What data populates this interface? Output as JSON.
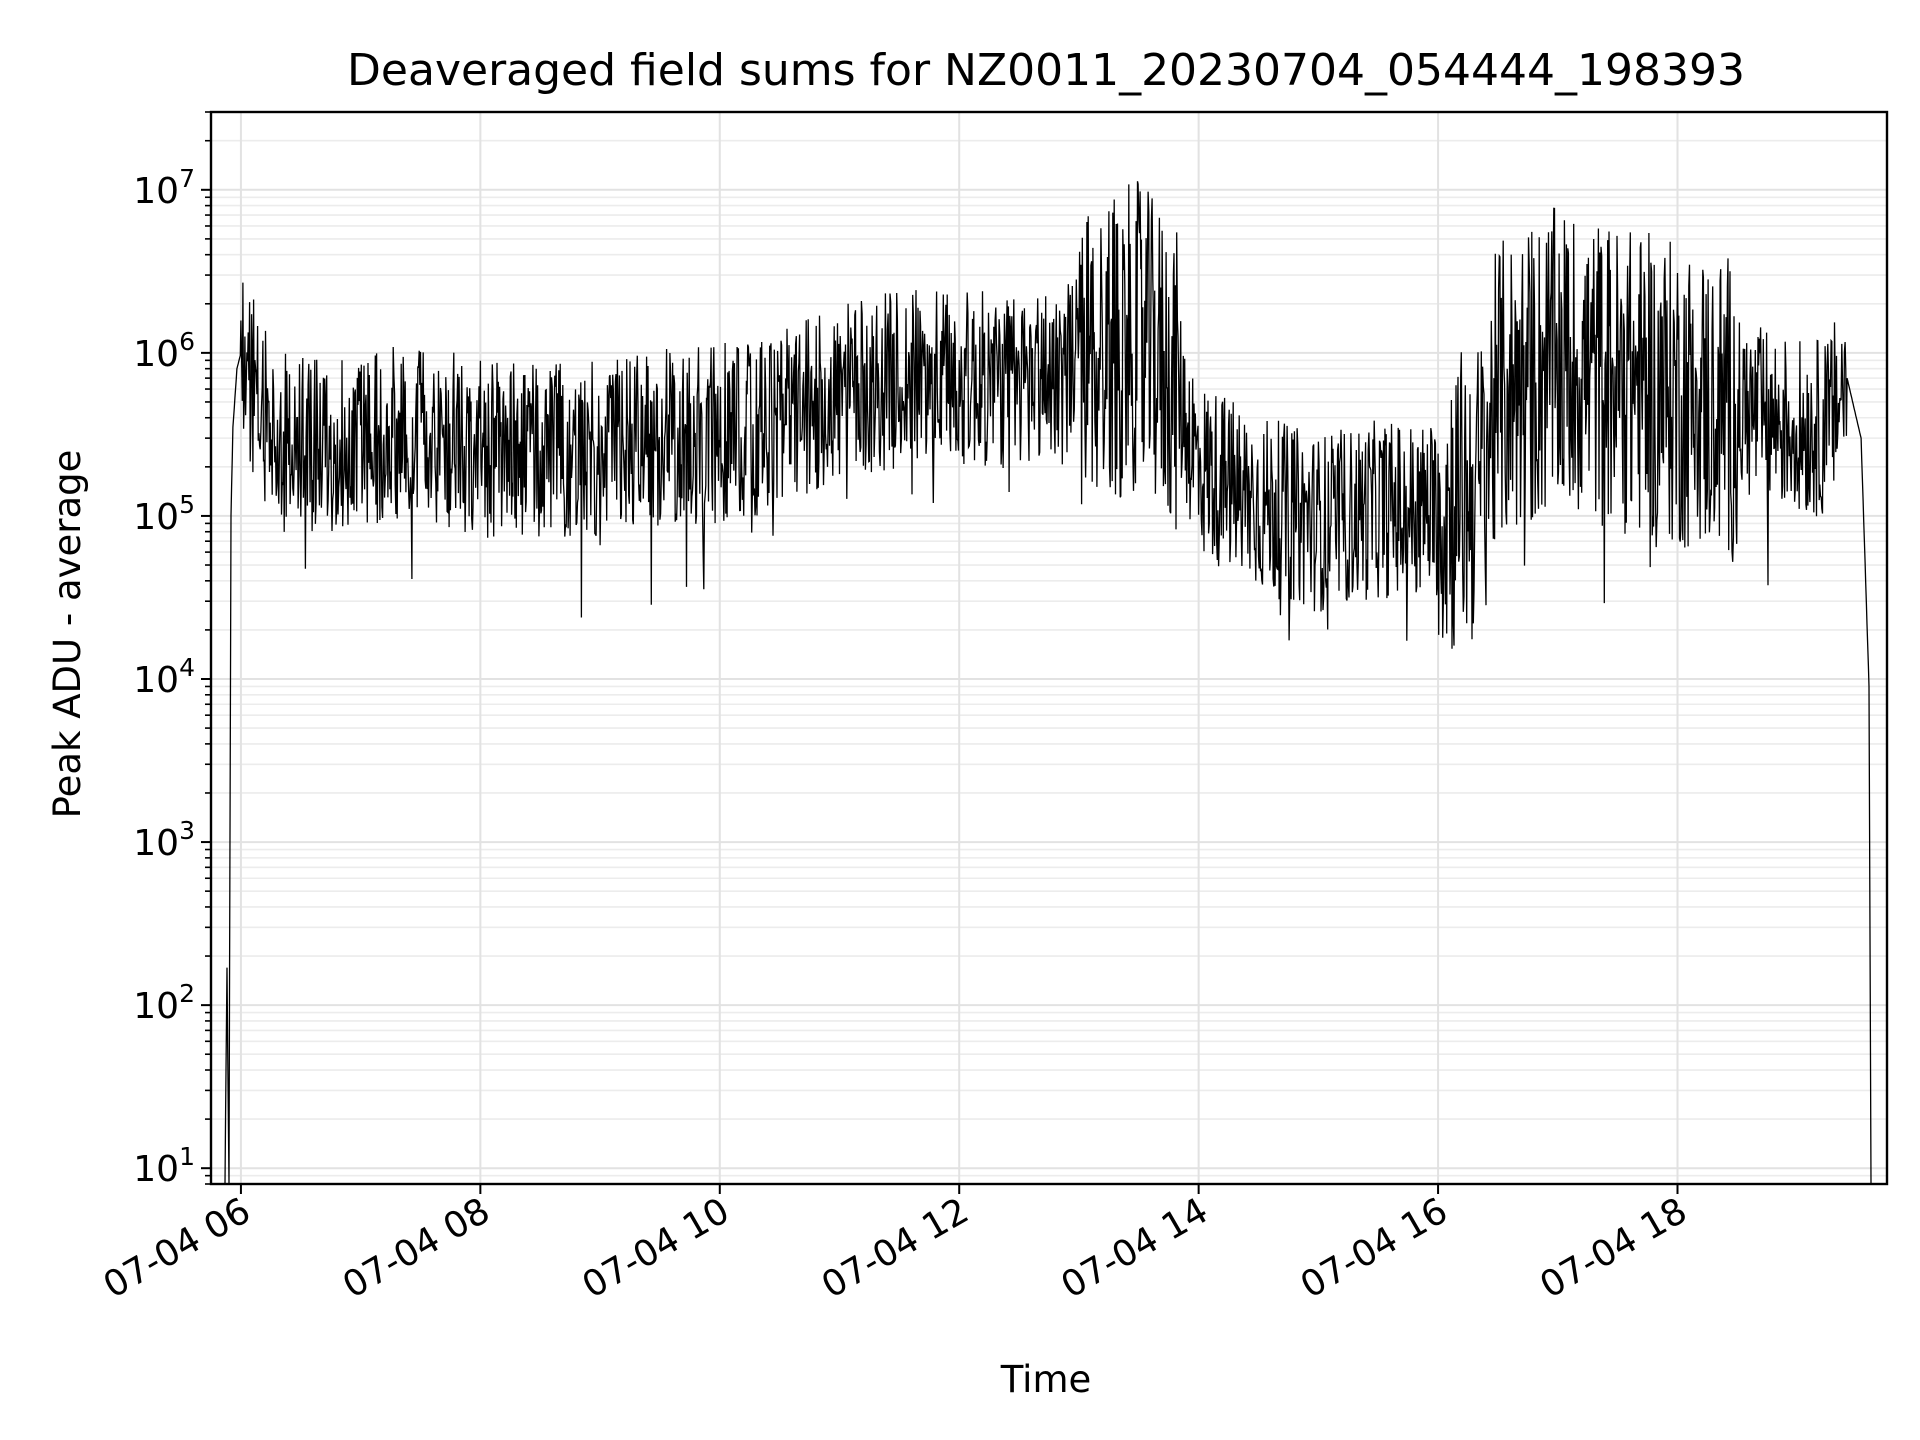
{
  "chart_data": {
    "type": "line",
    "title": "Deaveraged field sums for NZ0011_20230704_054444_198393",
    "xlabel": "Time",
    "ylabel": "Peak ADU - average",
    "yscale": "log",
    "ylim": [
      8,
      30000000
    ],
    "xlim": [
      "2023-07-04 05:45",
      "2023-07-04 19:45"
    ],
    "grid": true,
    "line_color": "#000000",
    "x_ticks": [
      "07-04 06",
      "07-04 08",
      "07-04 10",
      "07-04 12",
      "07-04 14",
      "07-04 16",
      "07-04 18"
    ],
    "x_tick_values": [
      "2023-07-04 06:00",
      "2023-07-04 08:00",
      "2023-07-04 10:00",
      "2023-07-04 12:00",
      "2023-07-04 14:00",
      "2023-07-04 16:00",
      "2023-07-04 18:00"
    ],
    "y_ticks": [
      {
        "value": 10,
        "base": "10",
        "exp": "1"
      },
      {
        "value": 100,
        "base": "10",
        "exp": "2"
      },
      {
        "value": 1000,
        "base": "10",
        "exp": "3"
      },
      {
        "value": 10000,
        "base": "10",
        "exp": "4"
      },
      {
        "value": 100000,
        "base": "10",
        "exp": "5"
      },
      {
        "value": 1000000,
        "base": "10",
        "exp": "6"
      },
      {
        "value": 10000000,
        "base": "10",
        "exp": "7"
      }
    ],
    "series": [
      {
        "x": [
          "2023-07-04 05:52",
          "2023-07-04 05:53",
          "2023-07-04 05:54",
          "2023-07-04 05:55",
          "2023-07-04 05:56",
          "2023-07-04 05:58",
          "2023-07-04 06:00",
          "2023-07-04 06:04",
          "2023-07-04 06:08",
          "2023-07-04 06:15",
          "2023-07-04 06:25",
          "2023-07-04 06:35",
          "2023-07-04 06:45",
          "2023-07-04 07:00",
          "2023-07-04 07:30",
          "2023-07-04 08:00",
          "2023-07-04 08:30",
          "2023-07-04 09:00",
          "2023-07-04 09:30",
          "2023-07-04 10:00",
          "2023-07-04 10:30",
          "2023-07-04 11:00",
          "2023-07-04 11:30",
          "2023-07-04 12:00",
          "2023-07-04 12:30",
          "2023-07-04 13:00",
          "2023-07-04 13:30",
          "2023-07-04 13:48",
          "2023-07-04 14:00",
          "2023-07-04 14:30",
          "2023-07-04 15:00",
          "2023-07-04 15:30",
          "2023-07-04 16:00",
          "2023-07-04 16:20",
          "2023-07-04 16:30",
          "2023-07-04 17:00",
          "2023-07-04 17:30",
          "2023-07-04 18:00",
          "2023-07-04 18:30",
          "2023-07-04 19:00",
          "2023-07-04 19:15",
          "2023-07-04 19:25",
          "2023-07-04 19:32",
          "2023-07-04 19:36"
        ],
        "values": [
          8,
          170,
          8,
          100000,
          350000,
          800000,
          1000000,
          800000,
          500000,
          350000,
          300000,
          250000,
          280000,
          300000,
          320000,
          260000,
          240000,
          270000,
          300000,
          320000,
          380000,
          550000,
          700000,
          700000,
          650000,
          900000,
          1300000,
          700000,
          200000,
          120000,
          90000,
          110000,
          110000,
          140000,
          550000,
          900000,
          700000,
          550000,
          450000,
          350000,
          350000,
          700000,
          300000,
          9000
        ]
      }
    ]
  }
}
